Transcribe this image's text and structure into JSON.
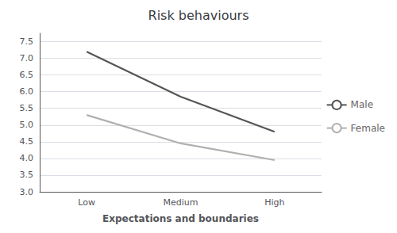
{
  "chart_data": {
    "type": "line",
    "title": "Risk behaviours",
    "xlabel": "Expectations and boundaries",
    "categories": [
      "Low",
      "Medium",
      "High"
    ],
    "series": [
      {
        "name": "Male",
        "color": "#555555",
        "values": [
          7.2,
          5.85,
          4.8
        ]
      },
      {
        "name": "Female",
        "color": "#b0b0b0",
        "values": [
          5.3,
          4.45,
          3.95
        ]
      }
    ],
    "ylim": [
      3.0,
      7.75
    ],
    "yticks": [
      {
        "value": 3,
        "label": "3.0"
      },
      3.5,
      {
        "value": 4,
        "label": "4.0"
      },
      4.5,
      {
        "value": 5,
        "label": "5.0"
      },
      5.5,
      {
        "value": 6,
        "label": "6.0"
      },
      6.5,
      {
        "value": 7,
        "label": "7.0"
      },
      7.5
    ],
    "grid": true,
    "legend": "right"
  }
}
